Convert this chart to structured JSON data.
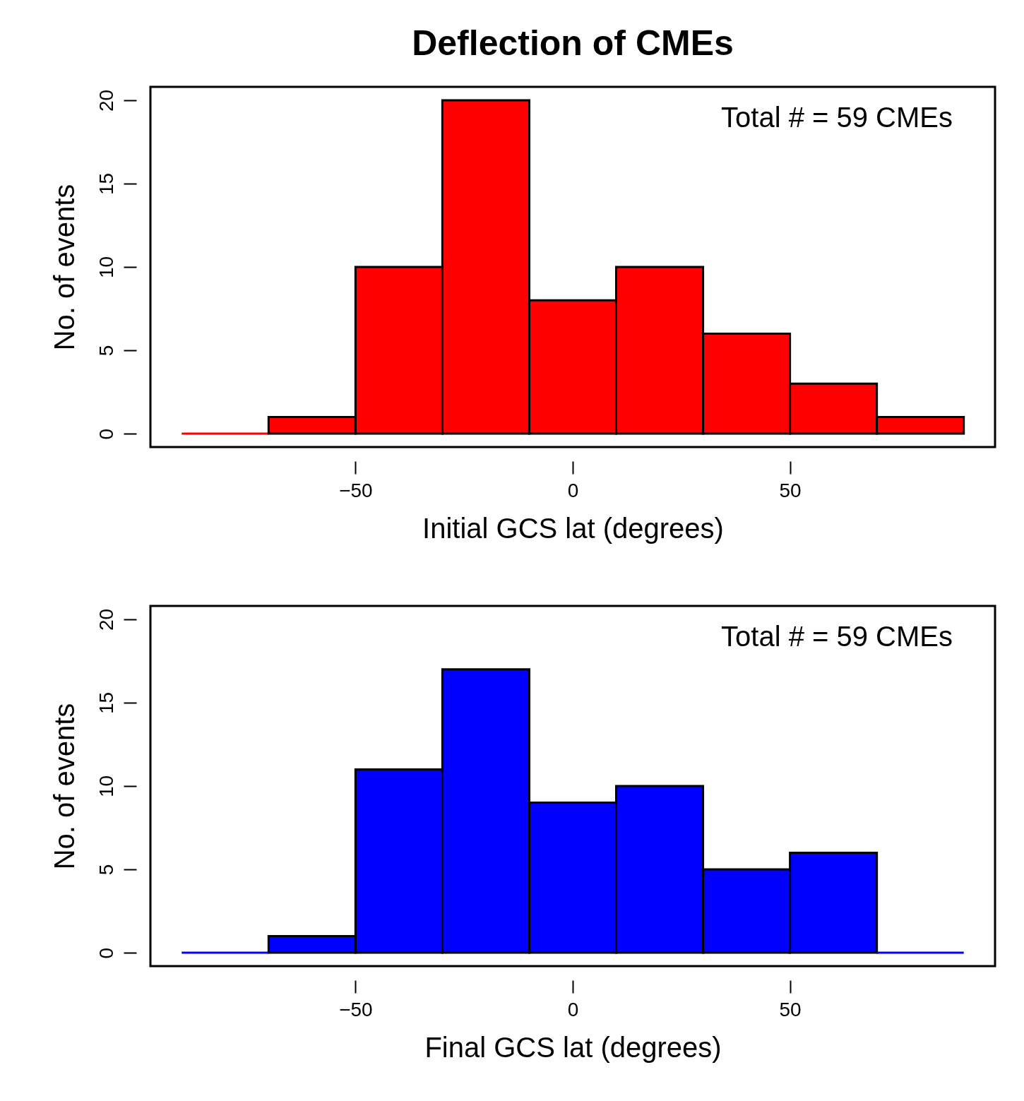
{
  "chart_data": [
    {
      "type": "histogram",
      "title": "Deflection of CMEs",
      "xlabel": "Initial GCS lat (degrees)",
      "ylabel": "No. of events",
      "color": "#ff0000",
      "bins": [
        -90,
        -70,
        -50,
        -30,
        -10,
        10,
        30,
        50,
        70,
        90
      ],
      "values": [
        0,
        1,
        10,
        20,
        8,
        10,
        6,
        3,
        1
      ],
      "xlim": [
        -97.2,
        97.2
      ],
      "xticks": [
        -50,
        0,
        50
      ],
      "ylim": [
        -0.8,
        20.8
      ],
      "yticks": [
        0,
        5,
        10,
        15,
        20
      ],
      "annotations": [
        "Total # = 59 CMEs"
      ]
    },
    {
      "type": "histogram",
      "xlabel": "Final GCS lat (degrees)",
      "ylabel": "No. of events",
      "color": "#0000ff",
      "bins": [
        -90,
        -70,
        -50,
        -30,
        -10,
        10,
        30,
        50,
        70,
        90
      ],
      "values": [
        0,
        1,
        11,
        17,
        9,
        10,
        5,
        6,
        0
      ],
      "xlim": [
        -97.2,
        97.2
      ],
      "xticks": [
        -50,
        0,
        50
      ],
      "ylim": [
        -0.8,
        20.8
      ],
      "yticks": [
        0,
        5,
        10,
        15,
        20
      ],
      "annotations": [
        "Total # = 59 CMEs"
      ]
    }
  ]
}
